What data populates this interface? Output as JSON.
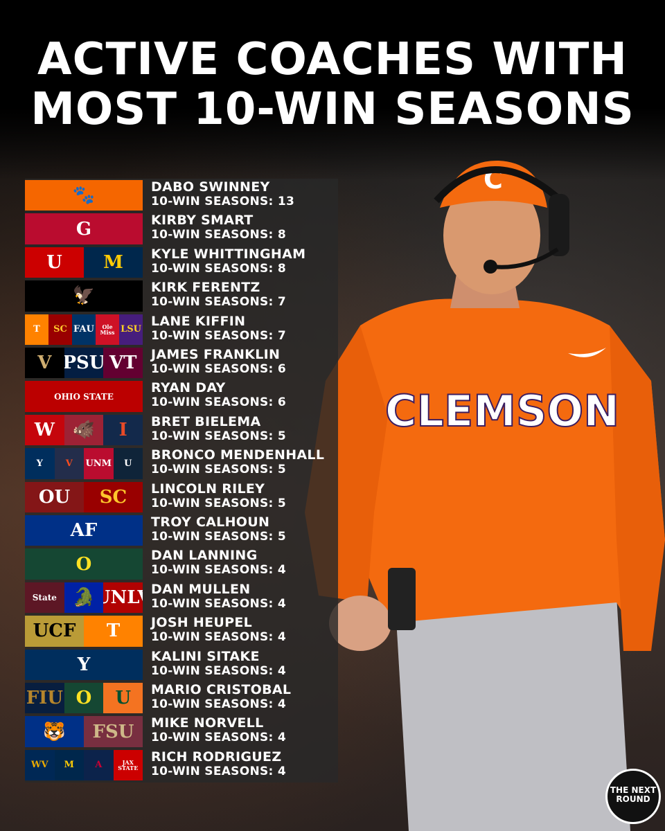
{
  "title": {
    "line1": "ACTIVE COACHES WITH",
    "line2": "MOST 10-WIN SEASONS"
  },
  "coaches": [
    {
      "name": "DABO SWINNEY",
      "wins": "10-WIN SEASONS: 13",
      "logos": [
        {
          "bg": "#F56600",
          "fg": "#fff",
          "text": "🐾",
          "icon": "clemson-paw-icon"
        }
      ]
    },
    {
      "name": "KIRBY SMART",
      "wins": "10-WIN SEASONS: 8",
      "logos": [
        {
          "bg": "#BA0C2F",
          "fg": "#fff",
          "text": "G",
          "icon": "georgia-g-icon"
        }
      ]
    },
    {
      "name": "KYLE WHITTINGHAM",
      "wins": "10-WIN SEASONS: 8",
      "logos": [
        {
          "bg": "#CC0000",
          "fg": "#fff",
          "text": "U",
          "icon": "utah-u-icon"
        },
        {
          "bg": "#00274C",
          "fg": "#FFCB05",
          "text": "M",
          "icon": "michigan-m-icon"
        }
      ]
    },
    {
      "name": "KIRK FERENTZ",
      "wins": "10-WIN SEASONS: 7",
      "logos": [
        {
          "bg": "#000000",
          "fg": "#FFCD00",
          "text": "🦅",
          "icon": "iowa-hawk-icon"
        }
      ]
    },
    {
      "name": "LANE KIFFIN",
      "wins": "10-WIN SEASONS: 7",
      "logos": [
        {
          "bg": "#FF8200",
          "fg": "#fff",
          "text": "T",
          "icon": "tennessee-t-icon"
        },
        {
          "bg": "#990000",
          "fg": "#FFC72C",
          "text": "SC",
          "icon": "usc-sc-icon"
        },
        {
          "bg": "#003366",
          "fg": "#fff",
          "text": "FAU",
          "icon": "fau-owl-icon"
        },
        {
          "bg": "#CE1126",
          "fg": "#fff",
          "text": "Ole Miss",
          "icon": "ole-miss-icon"
        },
        {
          "bg": "#461D7C",
          "fg": "#FDD023",
          "text": "LSU",
          "icon": "lsu-tiger-icon"
        }
      ]
    },
    {
      "name": "JAMES FRANKLIN",
      "wins": "10-WIN SEASONS: 6",
      "logos": [
        {
          "bg": "#000000",
          "fg": "#CFAE70",
          "text": "V",
          "icon": "vanderbilt-v-icon"
        },
        {
          "bg": "#041E42",
          "fg": "#fff",
          "text": "PSU",
          "icon": "penn-state-lion-icon"
        },
        {
          "bg": "#630031",
          "fg": "#fff",
          "text": "VT",
          "icon": "virginia-tech-icon"
        }
      ]
    },
    {
      "name": "RYAN DAY",
      "wins": "10-WIN SEASONS: 6",
      "logos": [
        {
          "bg": "#BB0000",
          "fg": "#fff",
          "text": "OHIO STATE",
          "icon": "ohio-state-icon"
        }
      ]
    },
    {
      "name": "BRET BIELEMA",
      "wins": "10-WIN SEASONS: 5",
      "logos": [
        {
          "bg": "#C5050C",
          "fg": "#fff",
          "text": "W",
          "icon": "wisconsin-w-icon"
        },
        {
          "bg": "#9D2235",
          "fg": "#fff",
          "text": "🐗",
          "icon": "arkansas-hog-icon"
        },
        {
          "bg": "#13294B",
          "fg": "#E84A27",
          "text": "I",
          "icon": "illinois-i-icon"
        }
      ]
    },
    {
      "name": "BRONCO MENDENHALL",
      "wins": "10-WIN SEASONS: 5",
      "logos": [
        {
          "bg": "#002E5D",
          "fg": "#fff",
          "text": "Y",
          "icon": "byu-y-icon"
        },
        {
          "bg": "#232D4B",
          "fg": "#F84C1E",
          "text": "V",
          "icon": "virginia-v-icon"
        },
        {
          "bg": "#BA0C2F",
          "fg": "#fff",
          "text": "UNM",
          "icon": "new-mexico-lobo-icon"
        },
        {
          "bg": "#0F2439",
          "fg": "#fff",
          "text": "U",
          "icon": "utah-state-icon"
        }
      ]
    },
    {
      "name": "LINCOLN RILEY",
      "wins": "10-WIN SEASONS: 5",
      "logos": [
        {
          "bg": "#841617",
          "fg": "#fff",
          "text": "OU",
          "icon": "oklahoma-ou-icon"
        },
        {
          "bg": "#990000",
          "fg": "#FFC72C",
          "text": "SC",
          "icon": "usc-sc-icon"
        }
      ]
    },
    {
      "name": "TROY CALHOUN",
      "wins": "10-WIN SEASONS: 5",
      "logos": [
        {
          "bg": "#003087",
          "fg": "#fff",
          "text": "AF",
          "icon": "air-force-icon"
        }
      ]
    },
    {
      "name": "DAN LANNING",
      "wins": "10-WIN SEASONS: 4",
      "logos": [
        {
          "bg": "#154733",
          "fg": "#FEE123",
          "text": "O",
          "icon": "oregon-o-icon"
        }
      ]
    },
    {
      "name": "DAN MULLEN",
      "wins": "10-WIN SEASONS: 4",
      "logos": [
        {
          "bg": "#5D1725",
          "fg": "#fff",
          "text": "State",
          "icon": "mississippi-state-icon"
        },
        {
          "bg": "#0021A5",
          "fg": "#FA4616",
          "text": "🐊",
          "icon": "florida-gator-icon"
        },
        {
          "bg": "#B10202",
          "fg": "#fff",
          "text": "UNLV",
          "icon": "unlv-icon"
        }
      ]
    },
    {
      "name": "JOSH HEUPEL",
      "wins": "10-WIN SEASONS: 4",
      "logos": [
        {
          "bg": "#BA9B37",
          "fg": "#000",
          "text": "UCF",
          "icon": "ucf-icon"
        },
        {
          "bg": "#FF8200",
          "fg": "#fff",
          "text": "T",
          "icon": "tennessee-t-icon"
        }
      ]
    },
    {
      "name": "KALINI SITAKE",
      "wins": "10-WIN SEASONS: 4",
      "logos": [
        {
          "bg": "#002E5D",
          "fg": "#fff",
          "text": "Y",
          "icon": "byu-y-icon"
        }
      ]
    },
    {
      "name": "MARIO CRISTOBAL",
      "wins": "10-WIN SEASONS: 4",
      "logos": [
        {
          "bg": "#081E3F",
          "fg": "#B6862C",
          "text": "FIU",
          "icon": "fiu-icon"
        },
        {
          "bg": "#154733",
          "fg": "#FEE123",
          "text": "O",
          "icon": "oregon-o-icon"
        },
        {
          "bg": "#F47321",
          "fg": "#005030",
          "text": "U",
          "icon": "miami-u-icon"
        }
      ]
    },
    {
      "name": "MIKE NORVELL",
      "wins": "10-WIN SEASONS: 4",
      "logos": [
        {
          "bg": "#003087",
          "fg": "#fff",
          "text": "🐯",
          "icon": "memphis-tiger-icon"
        },
        {
          "bg": "#782F40",
          "fg": "#CEB888",
          "text": "FSU",
          "icon": "florida-state-icon"
        }
      ]
    },
    {
      "name": "RICH RODRIGUEZ",
      "wins": "10-WIN SEASONS: 4",
      "logos": [
        {
          "bg": "#002855",
          "fg": "#EAAA00",
          "text": "WV",
          "icon": "west-virginia-icon"
        },
        {
          "bg": "#00274C",
          "fg": "#FFCB05",
          "text": "M",
          "icon": "michigan-m-icon"
        },
        {
          "bg": "#0C234B",
          "fg": "#CC0033",
          "text": "A",
          "icon": "arizona-a-icon"
        },
        {
          "bg": "#CC0000",
          "fg": "#fff",
          "text": "JAX STATE",
          "icon": "jax-state-icon"
        }
      ]
    }
  ],
  "coach_photo": {
    "jersey_text": "CLEMSON",
    "cap_letter": "C",
    "jersey_color": "#F56600"
  },
  "brand": {
    "text": "THE NEXT ROUND",
    "icon": "the-next-round-logo-icon"
  }
}
